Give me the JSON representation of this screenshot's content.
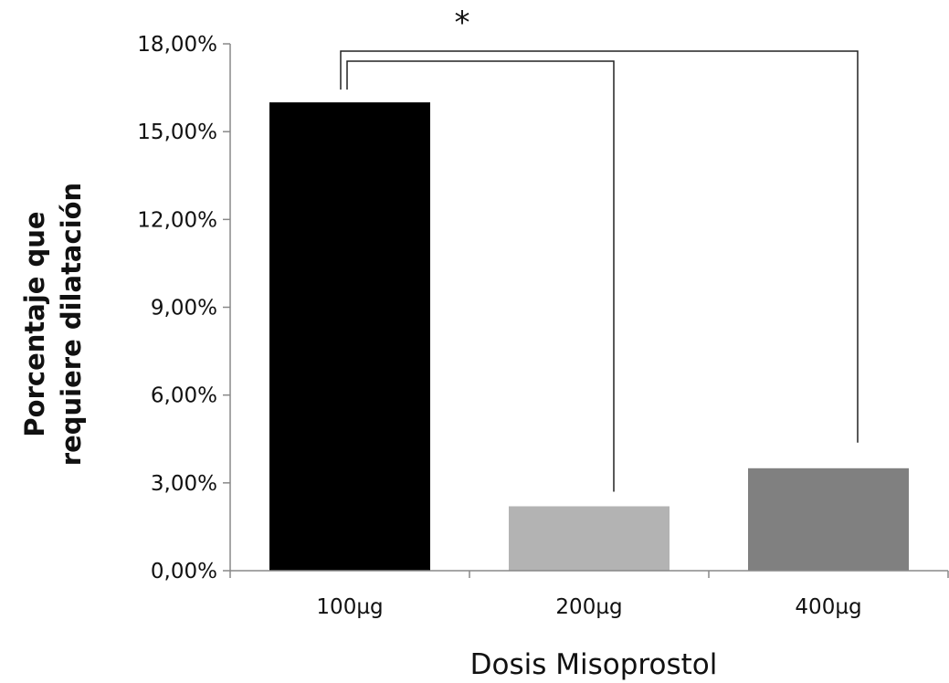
{
  "chart_data": {
    "type": "bar",
    "title": "",
    "categories": [
      "100µg",
      "200µg",
      "400µg"
    ],
    "values": [
      16.0,
      2.2,
      3.5
    ],
    "colors": [
      "#000000",
      "#b3b3b3",
      "#808080"
    ],
    "xlabel": "Dosis Misoprostol",
    "ylabel_lines": [
      "Porcentaje que",
      "requiere dilatación"
    ],
    "ylim": [
      0,
      18
    ],
    "yticks": [
      0,
      3,
      6,
      9,
      12,
      15,
      18
    ],
    "ytick_labels": [
      "0,00%",
      "3,00%",
      "6,00%",
      "9,00%",
      "12,00%",
      "15,00%",
      "18,00%"
    ],
    "grid": false,
    "legend": "none",
    "annotations": [
      {
        "text": "*",
        "type": "significance-bracket",
        "from": "100µg",
        "to": "400µg"
      },
      {
        "text": "",
        "type": "significance-bracket",
        "from": "100µg",
        "to": "200µg"
      }
    ]
  }
}
